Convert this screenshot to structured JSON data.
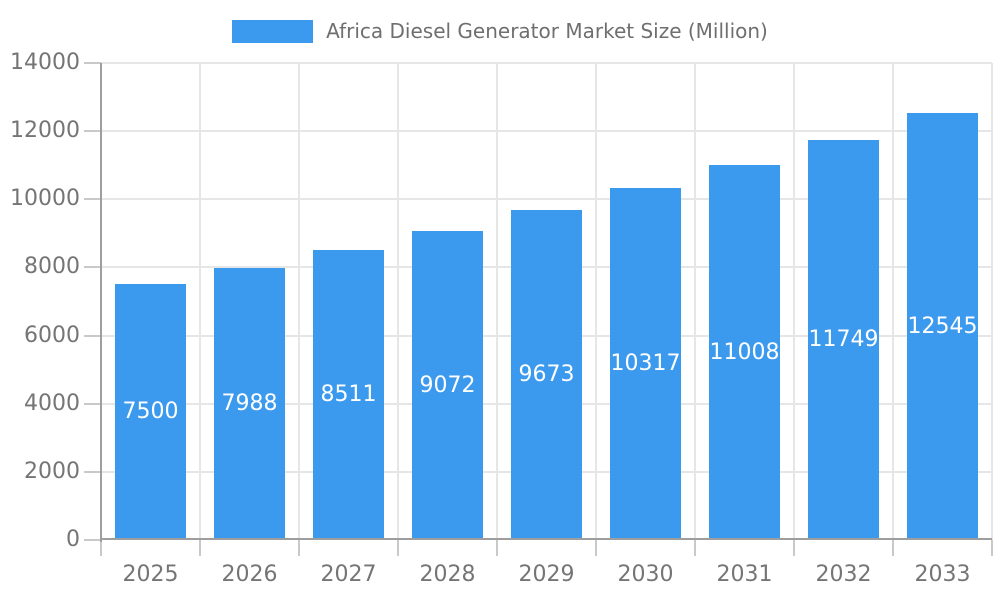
{
  "chart_data": {
    "type": "bar",
    "title": "Africa Diesel Generator Market Size (Million)",
    "legend": [
      "Africa Diesel Generator Market Size (Million)"
    ],
    "legend_position": "top",
    "categories": [
      "2025",
      "2026",
      "2027",
      "2028",
      "2029",
      "2030",
      "2031",
      "2032",
      "2033"
    ],
    "values": [
      7500,
      7988,
      8511,
      9072,
      9673,
      10317,
      11008,
      11749,
      12545
    ],
    "xlabel": "",
    "ylabel": "",
    "ylim": [
      0,
      14000
    ],
    "ytick_step": 2000,
    "yticks": [
      0,
      2000,
      4000,
      6000,
      8000,
      10000,
      12000,
      14000
    ],
    "grid": true,
    "bar_labels_inside": true,
    "colors": {
      "bar": "#3c9aee",
      "grid": "#e6e6e6",
      "axis": "#9e9e9e",
      "tick": "#c9c9c9",
      "axis_text": "#757575",
      "legend_text": "#6f6f6f",
      "value_label": "#ffffff",
      "background": "#ffffff"
    }
  }
}
